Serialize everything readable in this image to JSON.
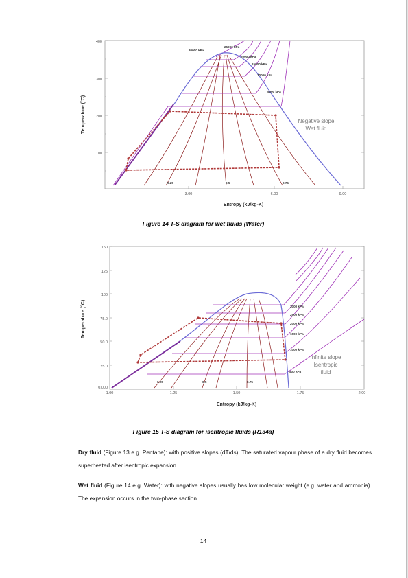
{
  "figure14": {
    "caption": "Figure 14 T-S diagram for wet fluids (Water)",
    "ylabel": "Temperature (°C)",
    "xlabel": "Entropy (kJ/kg-K)",
    "yticks": [
      "400",
      "300",
      "200",
      "100"
    ],
    "xticks": [
      "3.00",
      "6.00",
      "9.00"
    ],
    "pressure_labels": [
      "30000 kPa",
      "25000 kPa",
      "20000 kPa",
      "15000 kPa",
      "10000 kPa",
      "5000 kPa"
    ],
    "quality_labels": [
      "0.25",
      "0.5",
      "0.75"
    ],
    "annotation_line1": "Negative slope",
    "annotation_line2": "Wet fluid"
  },
  "figure15": {
    "caption": "Figure 15 T-S diagram for isentropic fluids (R134a)",
    "ylabel": "Temperature (°C)",
    "xlabel": "Entropy (kJ/kg-K)",
    "yticks": [
      "150",
      "125",
      "100",
      "75.0",
      "50.0",
      "25.0",
      "0.000"
    ],
    "xticks": [
      "1.00",
      "1.25",
      "1.50",
      "1.75",
      "2.00"
    ],
    "pressure_labels": [
      "3000 kPa",
      "2500 kPa",
      "2000 kPa",
      "1500 kPa",
      "1000 kPa",
      "500 kPa"
    ],
    "quality_labels": [
      "0.25",
      "0.5",
      "0.75"
    ],
    "annotation_line1": "Infinite slope",
    "annotation_line2": "Isentropic",
    "annotation_line3": "fluid"
  },
  "paragraphs": {
    "dry_term": "Dry fluid",
    "dry_text": " (Figure 13 e.g. Pentane): with positive slopes (dT/ds). The saturated vapour phase of a dry fluid becomes superheated after isentropic expansion.",
    "wet_term": "Wet fluid",
    "wet_text": " (Figure 14 e.g. Water): with negative slopes usually has low molecular weight (e.g. water and ammonia). The expansion occurs in the two-phase section."
  },
  "page_number": "14",
  "colors": {
    "saturation_dome": "#6b6bd6",
    "isobar": "#a033b8",
    "quality_line": "#8b1a1a",
    "cycle": "#b03a3a",
    "axis_text": "#555555"
  }
}
